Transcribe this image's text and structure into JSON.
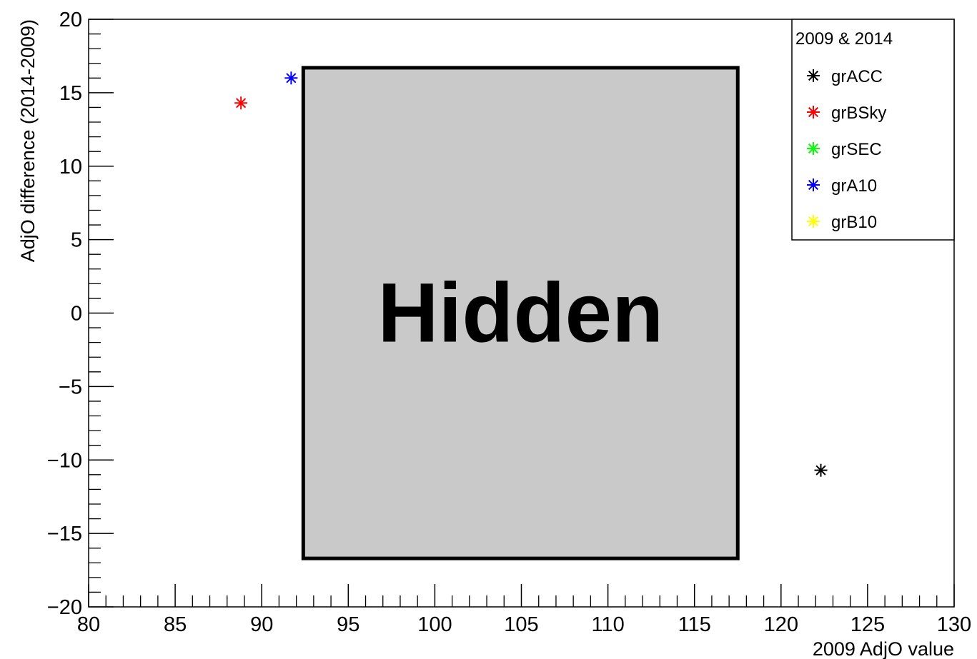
{
  "chart_data": {
    "type": "scatter",
    "xlabel": "2009 AdjO value",
    "ylabel": "AdjO difference (2014-2009)",
    "xlim": [
      80,
      130
    ],
    "ylim": [
      -20,
      20
    ],
    "xticks": [
      80,
      85,
      90,
      95,
      100,
      105,
      110,
      115,
      120,
      125,
      130
    ],
    "yticks": [
      -20,
      -15,
      -10,
      -5,
      0,
      5,
      10,
      15,
      20
    ],
    "xtick_labels": [
      "80",
      "85",
      "90",
      "95",
      "100",
      "105",
      "110",
      "115",
      "120",
      "125",
      "130"
    ],
    "ytick_labels": [
      "−20",
      "−15",
      "−10",
      "−5",
      "0",
      "5",
      "10",
      "15",
      "20"
    ],
    "grid": false,
    "marker": "asterisk",
    "legend": {
      "title": "2009 & 2014",
      "position": "top-right"
    },
    "series": [
      {
        "name": "grACC",
        "color": "#000000",
        "points": [
          [
            122.3,
            -10.7
          ]
        ]
      },
      {
        "name": "grBSky",
        "color": "#ff0000",
        "points": [
          [
            88.8,
            14.3
          ]
        ]
      },
      {
        "name": "grSEC",
        "color": "#00ff00",
        "points": []
      },
      {
        "name": "grA10",
        "color": "#0000ff",
        "points": [
          [
            91.7,
            16.0
          ]
        ]
      },
      {
        "name": "grB10",
        "color": "#ffff00",
        "points": []
      }
    ],
    "annotations": [
      {
        "text": "Hidden",
        "x_range": [
          92.4,
          117.5
        ],
        "y_range": [
          -16.7,
          16.7
        ],
        "fill": "#c9c9c9"
      }
    ]
  }
}
